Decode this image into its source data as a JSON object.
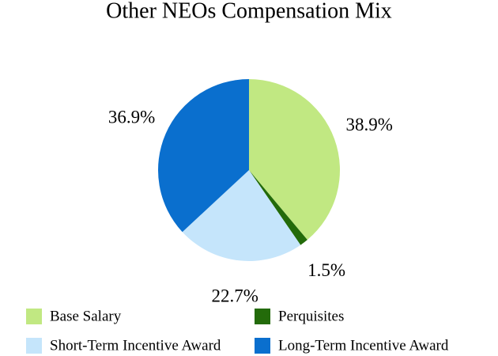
{
  "chart_data": {
    "type": "pie",
    "title": "Other NEOs Compensation Mix",
    "categories": [
      "Base Salary",
      "Perquisites",
      "Short-Term Incentive Award",
      "Long-Term Incentive Award"
    ],
    "values": [
      38.9,
      1.5,
      22.7,
      36.9
    ],
    "value_labels": [
      "38.9%",
      "1.5%",
      "22.7%",
      "36.9%"
    ],
    "colors": [
      "#c1e882",
      "#236b0a",
      "#c5e5fb",
      "#0a6fce"
    ],
    "legend": "bottom"
  }
}
